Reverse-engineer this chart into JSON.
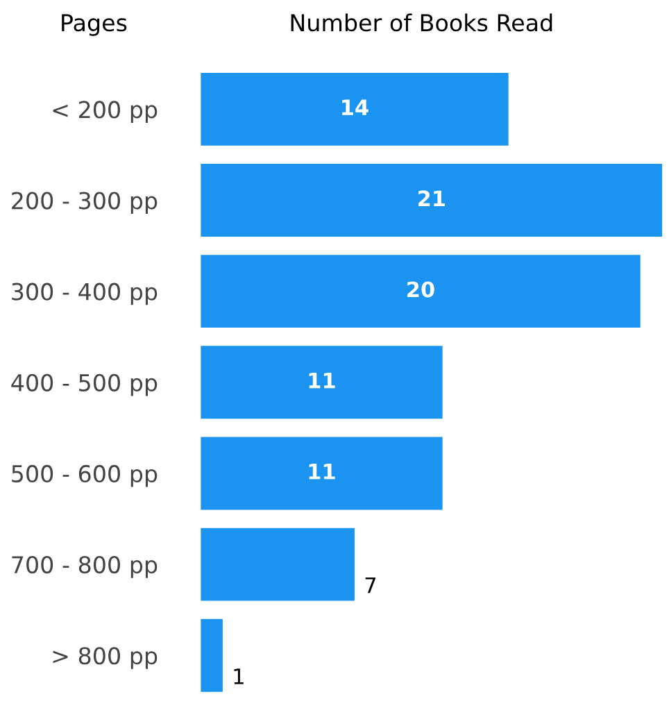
{
  "chart_data": {
    "type": "bar",
    "orientation": "horizontal",
    "title": "Number of Books Read",
    "ylabel": "Pages",
    "categories": [
      "< 200 pp",
      "200 - 300 pp",
      "300 - 400 pp",
      "400 - 500 pp",
      "500 - 600 pp",
      "700 - 800 pp",
      "> 800 pp"
    ],
    "values": [
      14,
      21,
      20,
      11,
      11,
      7,
      1
    ],
    "color": "#1a94f0",
    "data_labels": true,
    "grid": false,
    "legend": false
  }
}
